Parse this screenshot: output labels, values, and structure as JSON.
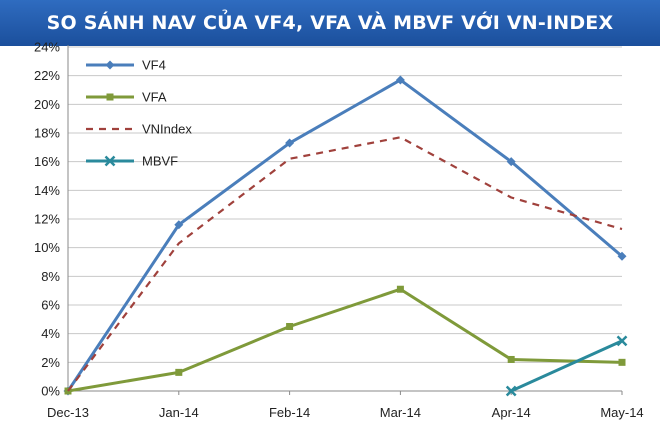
{
  "header": {
    "title": "SO SÁNH NAV CỦA VF4, VFA VÀ MBVF VỚI VN-INDEX"
  },
  "chart_data": {
    "type": "line",
    "title": "SO SÁNH NAV CỦA VF4, VFA VÀ MBVF VỚI VN-INDEX",
    "categories": [
      "Dec-13",
      "Jan-14",
      "Feb-14",
      "Mar-14",
      "Apr-14",
      "May-14"
    ],
    "ylim": [
      0,
      24
    ],
    "yticks": [
      "0%",
      "2%",
      "4%",
      "6%",
      "8%",
      "10%",
      "12%",
      "14%",
      "16%",
      "18%",
      "20%",
      "22%",
      "24%"
    ],
    "grid": "horizontal",
    "legend_position": "top-left",
    "series": [
      {
        "name": "VF4",
        "color": "#4a7ebb",
        "style": "solid",
        "marker": "diamond",
        "values": [
          0,
          11.6,
          17.3,
          21.7,
          16.0,
          9.4
        ]
      },
      {
        "name": "VFA",
        "color": "#7f9a3a",
        "style": "solid",
        "marker": "square",
        "values": [
          0,
          1.3,
          4.5,
          7.1,
          2.2,
          2.0
        ]
      },
      {
        "name": "VNIndex",
        "color": "#a0413c",
        "style": "dashed",
        "marker": "none",
        "values": [
          0,
          10.3,
          16.2,
          17.7,
          13.5,
          11.3
        ]
      },
      {
        "name": "MBVF",
        "color": "#2a8a9c",
        "style": "solid",
        "marker": "x",
        "values": [
          null,
          null,
          null,
          null,
          0,
          3.5
        ]
      }
    ]
  }
}
